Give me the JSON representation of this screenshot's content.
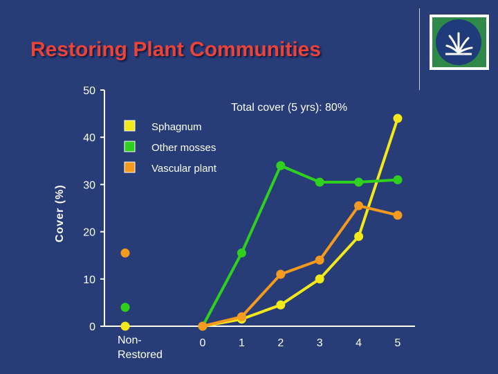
{
  "slide": {
    "title": "Restoring Plant Communities"
  },
  "chart_data": {
    "type": "line",
    "title": "Restoring Plant Communities",
    "ylabel": "Cover (%)",
    "xlabel": "",
    "ylim": [
      0,
      50
    ],
    "yticks": [
      0,
      10,
      20,
      30,
      40,
      50
    ],
    "categories": [
      "Non-Restored",
      "0",
      "1",
      "2",
      "3",
      "4",
      "5"
    ],
    "reference_label": "Non-\nRestored",
    "annotation": "Total cover (5 yrs): 80%",
    "legend_position": "top-left",
    "series": [
      {
        "name": "Sphagnum",
        "color": "#f2e81a",
        "reference": 0,
        "x": [
          0,
          1,
          2,
          3,
          4,
          5
        ],
        "values": [
          0,
          1.5,
          4.5,
          10,
          19,
          44
        ]
      },
      {
        "name": "Other mosses",
        "color": "#30d01e",
        "reference": 4,
        "x": [
          0,
          1,
          2,
          3,
          4,
          5
        ],
        "values": [
          0,
          15.5,
          34,
          30.5,
          30.5,
          31
        ]
      },
      {
        "name": "Vascular plant",
        "color": "#f49a1e",
        "reference": 15.5,
        "x": [
          0,
          1,
          2,
          3,
          4,
          5
        ],
        "values": [
          0,
          2,
          11,
          14,
          25.5,
          23.5
        ]
      }
    ]
  }
}
